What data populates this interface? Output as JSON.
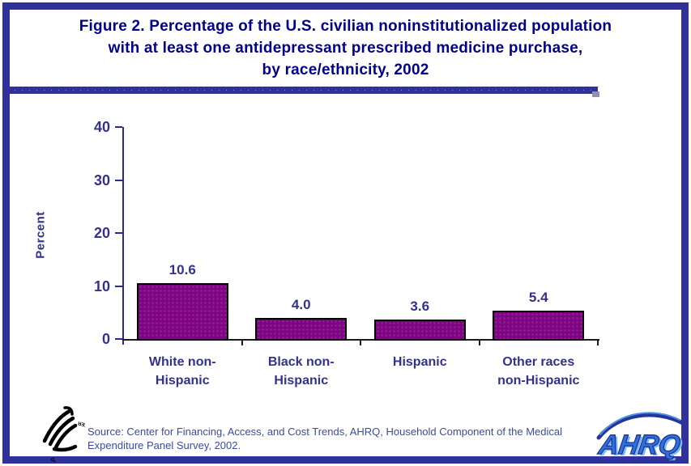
{
  "header": {
    "title_lines": [
      "Figure 2. Percentage of the U.S. civilian noninstitutionalized population",
      "with at least one antidepressant prescribed medicine purchase,",
      "by race/ethnicity, 2002"
    ]
  },
  "chart_data": {
    "type": "bar",
    "title": "Percentage of the U.S. civilian noninstitutionalized population with at least one antidepressant prescribed medicine purchase, by race/ethnicity, 2002",
    "categories": [
      "White non-Hispanic",
      "Black non-Hispanic",
      "Hispanic",
      "Other races non-Hispanic"
    ],
    "category_label_lines": [
      [
        "White non-",
        "Hispanic"
      ],
      [
        "Black non-",
        "Hispanic"
      ],
      [
        "Hispanic"
      ],
      [
        "Other races",
        "non-Hispanic"
      ]
    ],
    "values": [
      10.6,
      4.0,
      3.6,
      5.4
    ],
    "value_labels": [
      "10.6",
      "4.0",
      "3.6",
      "5.4"
    ],
    "xlabel": "",
    "ylabel": "Percent",
    "ylim": [
      0,
      40
    ],
    "yticks": [
      0,
      10,
      20,
      30,
      40
    ],
    "grid": false,
    "legend": false,
    "bar_color": "#7A0682",
    "bar_border_color": "#000000"
  },
  "footer": {
    "source_lines": [
      "Source: Center for Financing, Access, and Cost Trends, AHRQ, Household Component of the Medical",
      "Expenditure Panel Survey, 2002."
    ],
    "hhs_seal_text": "DEPARTMENT OF HEALTH & HUMAN SERVICES • USA",
    "ahrq_text": "AHRQ"
  },
  "colors": {
    "frame_navy": "#31319B",
    "title_navy": "#00008B",
    "label_navy": "#32328C",
    "axis_blue": "#2A2A94",
    "axis_black": "#1A1A1A",
    "bar_purple": "#7A0682",
    "source_blue": "#3A4BA5",
    "ahrq_blue": "#2F71D8",
    "ahrq_dark_blue": "#1A2E8F"
  }
}
